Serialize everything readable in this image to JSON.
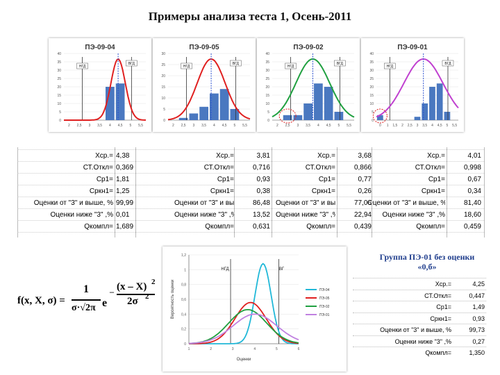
{
  "title": "Примеры анализа теста 1, Осень-2011",
  "groups": [
    {
      "name": "ПЭ-09-04",
      "ngd": "НГД",
      "vgd": "ВГД",
      "ymax": 40,
      "yticks": [
        "0",
        "5",
        "10",
        "15",
        "20",
        "25",
        "30",
        "35",
        "40"
      ],
      "xticks": [
        "2",
        "2,5",
        "3",
        "3,5",
        "4",
        "4,5",
        "5",
        "5,5"
      ],
      "bars": [
        0,
        0,
        0,
        0,
        20,
        22,
        0,
        0
      ],
      "curve_color": "#e02020",
      "mean": 4.38,
      "sd": 0.369
    },
    {
      "name": "ПЭ-09-05",
      "ngd": "НГД",
      "vgd": "ВГД",
      "ymax": 30,
      "yticks": [
        "0",
        "5",
        "10",
        "15",
        "20",
        "25",
        "30"
      ],
      "xticks": [
        "2",
        "2,5",
        "3",
        "3,5",
        "4",
        "4,5",
        "5",
        "5,5"
      ],
      "bars": [
        0,
        1,
        3,
        6,
        12,
        14,
        5,
        0
      ],
      "curve_color": "#e02020",
      "mean": 3.81,
      "sd": 0.716
    },
    {
      "name": "ПЭ-09-02",
      "ngd": "НГД",
      "vgd": "ВГД",
      "ymax": 40,
      "yticks": [
        "0",
        "5",
        "10",
        "15",
        "20",
        "25",
        "30",
        "35",
        "40"
      ],
      "xticks": [
        "2",
        "2,5",
        "3",
        "3,5",
        "4",
        "4,5",
        "5",
        "5,5"
      ],
      "bars": [
        0,
        3,
        3,
        10,
        22,
        20,
        5,
        0
      ],
      "curve_color": "#20a040",
      "mean": 3.68,
      "sd": 0.866
    },
    {
      "name": "ПЭ-09-01",
      "ngd": "НГД",
      "vgd": "ВГД",
      "ymax": 40,
      "yticks": [
        "0",
        "5",
        "10",
        "15",
        "20",
        "25",
        "30",
        "35",
        "40"
      ],
      "xticks": [
        "0",
        "1",
        "1,5",
        "2",
        "2,5",
        "3",
        "3,5",
        "4",
        "4,5",
        "5",
        "5,5"
      ],
      "bars": [
        3,
        0,
        0,
        0,
        0,
        2,
        10,
        20,
        22,
        5,
        0
      ],
      "curve_color": "#c040d0",
      "mean": 4.01,
      "sd": 0.998
    }
  ],
  "stats_labels": [
    "Хср.=",
    "СТ.Откл=",
    "Ср1=",
    "Сркн1=",
    "Оценки от \"3\" и выше, %",
    "Оценки ниже \"3\" ,%",
    "Qкомпл="
  ],
  "stats": [
    [
      "4,38",
      "0,369",
      "1,81",
      "1,25",
      "99,99",
      "0,01",
      "1,689"
    ],
    [
      "3,81",
      "0,716",
      "0,93",
      "0,38",
      "86,48",
      "13,52",
      "0,631"
    ],
    [
      "3,68",
      "0,866",
      "0,77",
      "0,26",
      "77,06",
      "22,94",
      "0,439"
    ],
    [
      "4,01",
      "0,998",
      "0,67",
      "0,34",
      "81,40",
      "18,60",
      "0,459"
    ]
  ],
  "note": "Группа ПЭ-01 без оценки «0,б»",
  "stats2_labels": [
    "Хср.=",
    "СТ.Откл=",
    "Ср1=",
    "Сркн1=",
    "Оценки от \"3\" и выше, %",
    "Оценки ниже \"3\" ,%",
    "Qкомпл="
  ],
  "stats2": [
    "4,25",
    "0,447",
    "1,49",
    "0,93",
    "99,73",
    "0,27",
    "1,350"
  ],
  "formula": {
    "lhs": "f(x, X, σ) =",
    "one": "1",
    "den": "σ·√2π",
    "e": "e",
    "num": "(x – X)",
    "num_exp": "2",
    "exp_den": "2σ",
    "exp_den_exp": "2",
    "minus": "–"
  },
  "chart_data": {
    "type": "line",
    "ylabel": "Вероятность оценки",
    "xlabel": "Оценки",
    "xlim": [
      1,
      6
    ],
    "ylim": [
      0,
      1.2
    ],
    "xticks": [
      "1",
      "2",
      "3",
      "4",
      "5",
      "6"
    ],
    "yticks": [
      "0",
      "0,2",
      "0,4",
      "0,6",
      "0,8",
      "1",
      "1,2"
    ],
    "ngd": "НГД",
    "vgd": "ВГ",
    "series": [
      {
        "name": "ПЭ-04",
        "color": "#20b8d8",
        "mean": 4.38,
        "sd": 0.369
      },
      {
        "name": "ПЭ-05",
        "color": "#e02020",
        "mean": 3.81,
        "sd": 0.716
      },
      {
        "name": "ПЭ-02",
        "color": "#20a040",
        "mean": 3.68,
        "sd": 0.866
      },
      {
        "name": "ПЭ-01",
        "color": "#c080e0",
        "mean": 4.01,
        "sd": 0.998
      }
    ]
  }
}
